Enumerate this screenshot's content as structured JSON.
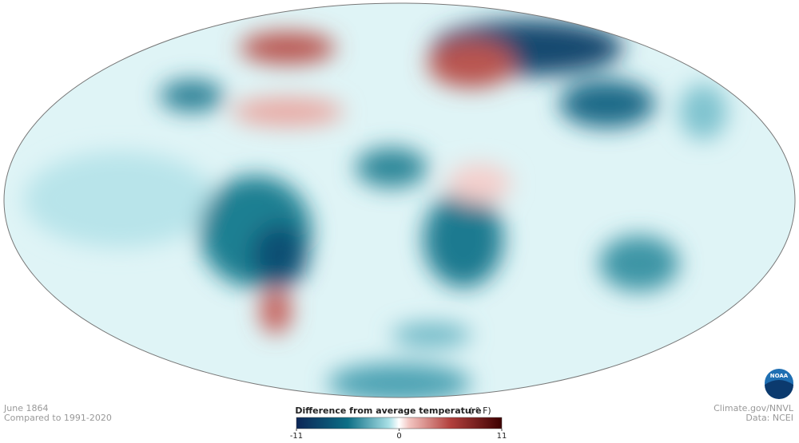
{
  "date": "June 1864",
  "baseline": "Compared to 1991-2020",
  "legend": {
    "title": "Difference from average temperature",
    "unit": "( ° F)",
    "range": [
      -11,
      11
    ],
    "ticks": [
      -11,
      0,
      11
    ]
  },
  "credits": {
    "source": "Climate.gov/NNVL",
    "data": "Data: NCEI"
  },
  "logo": "NOAA"
}
